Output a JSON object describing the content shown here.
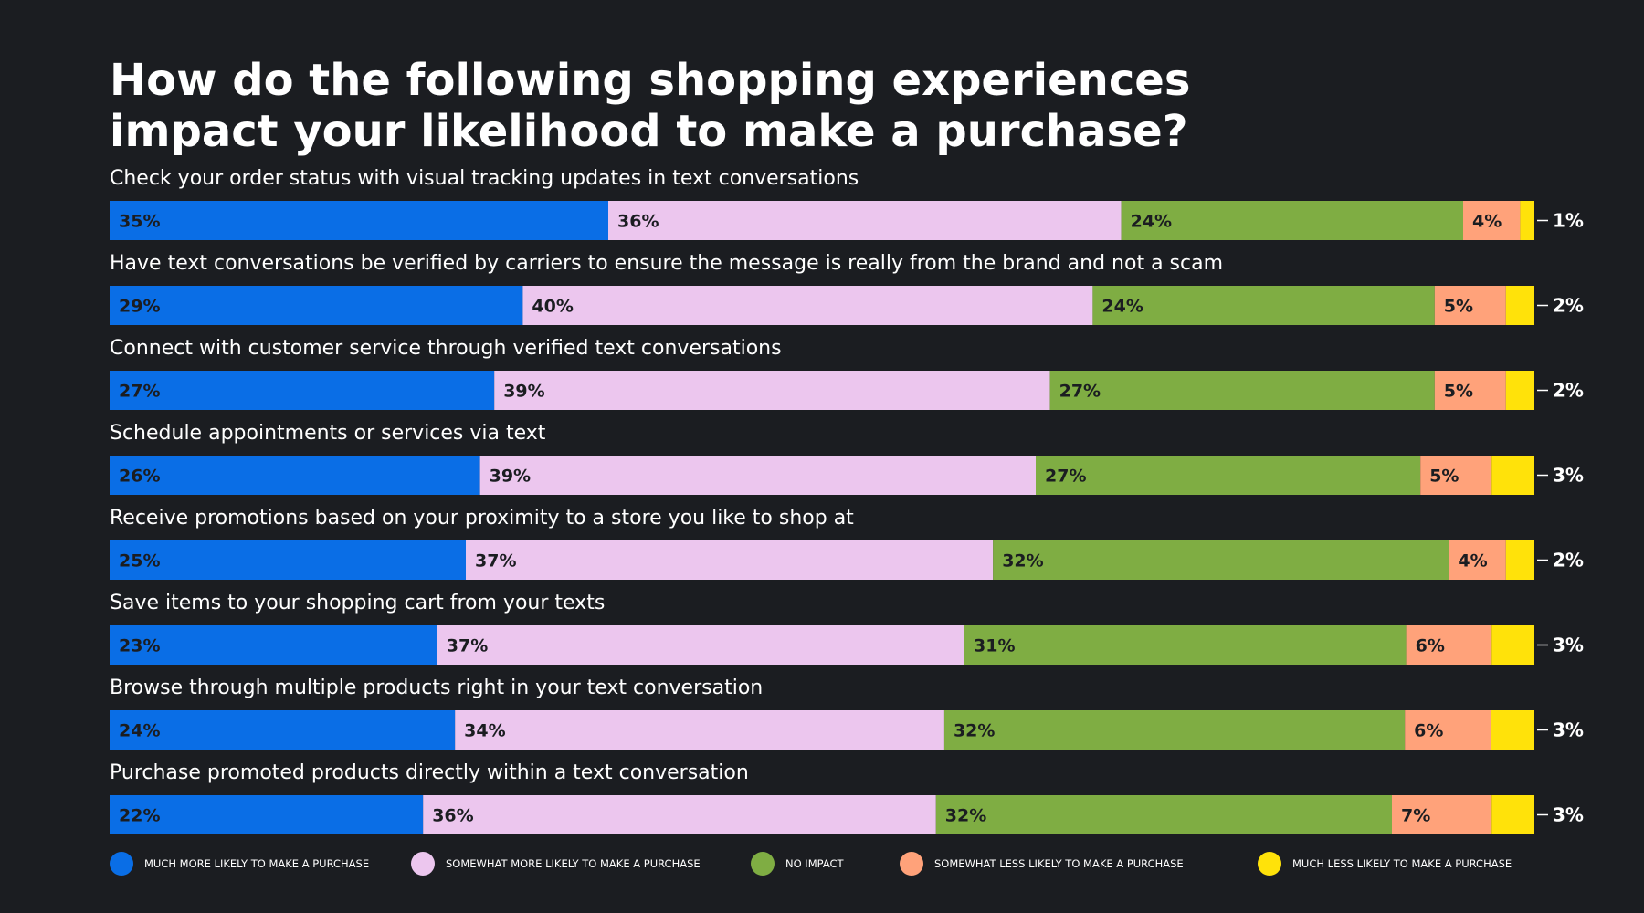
{
  "chart_data": {
    "type": "bar",
    "orientation": "horizontal-stacked",
    "title_lines": [
      "How do the following shopping experiences",
      "impact your likelihood to make a purchase?"
    ],
    "xlim": [
      0,
      100
    ],
    "grid": false,
    "legend_position": "bottom",
    "categories": [
      "Check your order status with visual tracking updates in text conversations",
      "Have text conversations be verified by carriers to ensure the message is really from the brand and not a scam",
      "Connect with customer service through verified text conversations",
      "Schedule appointments or services via text",
      "Receive promotions based on your proximity to a store you like to shop at",
      "Save items to your shopping cart from your texts",
      "Browse through multiple products right in your text conversation",
      "Purchase promoted products directly within a text conversation"
    ],
    "series": [
      {
        "name": "MUCH MORE LIKELY TO MAKE A PURCHASE",
        "color": "#0a6ee6",
        "values": [
          35,
          29,
          27,
          26,
          25,
          23,
          24,
          22
        ]
      },
      {
        "name": "SOMEWHAT MORE LIKELY TO MAKE A PURCHASE",
        "color": "#ecc6ee",
        "values": [
          36,
          40,
          39,
          39,
          37,
          37,
          34,
          36
        ]
      },
      {
        "name": "NO IMPACT",
        "color": "#7fad43",
        "values": [
          24,
          24,
          27,
          27,
          32,
          31,
          32,
          32
        ]
      },
      {
        "name": "SOMEWHAT LESS LIKELY TO MAKE A PURCHASE",
        "color": "#ffa27a",
        "values": [
          4,
          5,
          5,
          5,
          4,
          6,
          6,
          7
        ]
      },
      {
        "name": "MUCH LESS LIKELY TO MAKE A PURCHASE",
        "color": "#ffe20a",
        "values": [
          1,
          2,
          2,
          3,
          2,
          3,
          3,
          3
        ]
      }
    ]
  }
}
